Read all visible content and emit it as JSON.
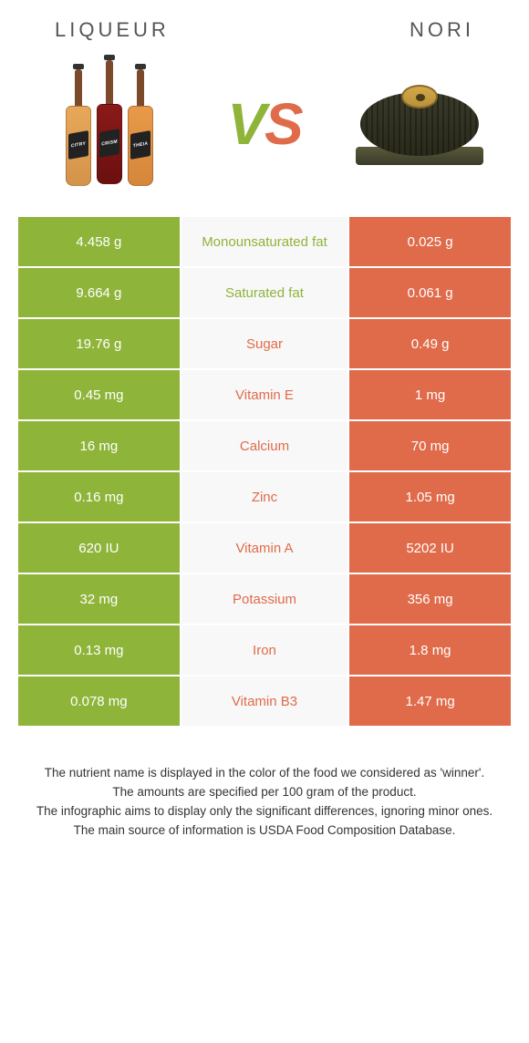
{
  "colors": {
    "green": "#8fb43a",
    "orange": "#e06b4a",
    "mid_bg": "#f8f8f8",
    "text": "#333333"
  },
  "header": {
    "left": "Liqueur",
    "right": "Nori"
  },
  "vs": {
    "v": "V",
    "s": "S"
  },
  "rows": [
    {
      "left": "4.458 g",
      "label": "Monounsaturated fat",
      "right": "0.025 g",
      "winner": "left"
    },
    {
      "left": "9.664 g",
      "label": "Saturated fat",
      "right": "0.061 g",
      "winner": "left"
    },
    {
      "left": "19.76 g",
      "label": "Sugar",
      "right": "0.49 g",
      "winner": "right"
    },
    {
      "left": "0.45 mg",
      "label": "Vitamin E",
      "right": "1 mg",
      "winner": "right"
    },
    {
      "left": "16 mg",
      "label": "Calcium",
      "right": "70 mg",
      "winner": "right"
    },
    {
      "left": "0.16 mg",
      "label": "Zinc",
      "right": "1.05 mg",
      "winner": "right"
    },
    {
      "left": "620 IU",
      "label": "Vitamin A",
      "right": "5202 IU",
      "winner": "right"
    },
    {
      "left": "32 mg",
      "label": "Potassium",
      "right": "356 mg",
      "winner": "right"
    },
    {
      "left": "0.13 mg",
      "label": "Iron",
      "right": "1.8 mg",
      "winner": "right"
    },
    {
      "left": "0.078 mg",
      "label": "Vitamin B3",
      "right": "1.47 mg",
      "winner": "right"
    }
  ],
  "footnotes": [
    "The nutrient name is displayed in the color of the food we considered as 'winner'.",
    "The amounts are specified per 100 gram of the product.",
    "The infographic aims to display only the significant differences, ignoring minor ones.",
    "The main source of information is USDA Food Composition Database."
  ],
  "bottle_labels": [
    "CITRY",
    "CRISM",
    "THEIA"
  ]
}
